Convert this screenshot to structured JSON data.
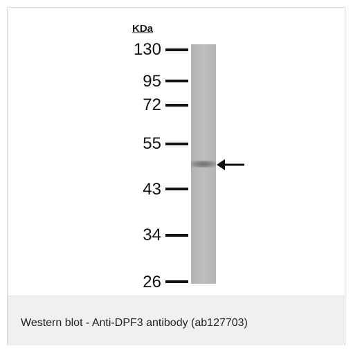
{
  "unit_label": "KDa",
  "markers": [
    "130",
    "95",
    "72",
    "55",
    "43",
    "34",
    "26"
  ],
  "caption": "Western blot - Anti-DPF3 antibody (ab127703)"
}
